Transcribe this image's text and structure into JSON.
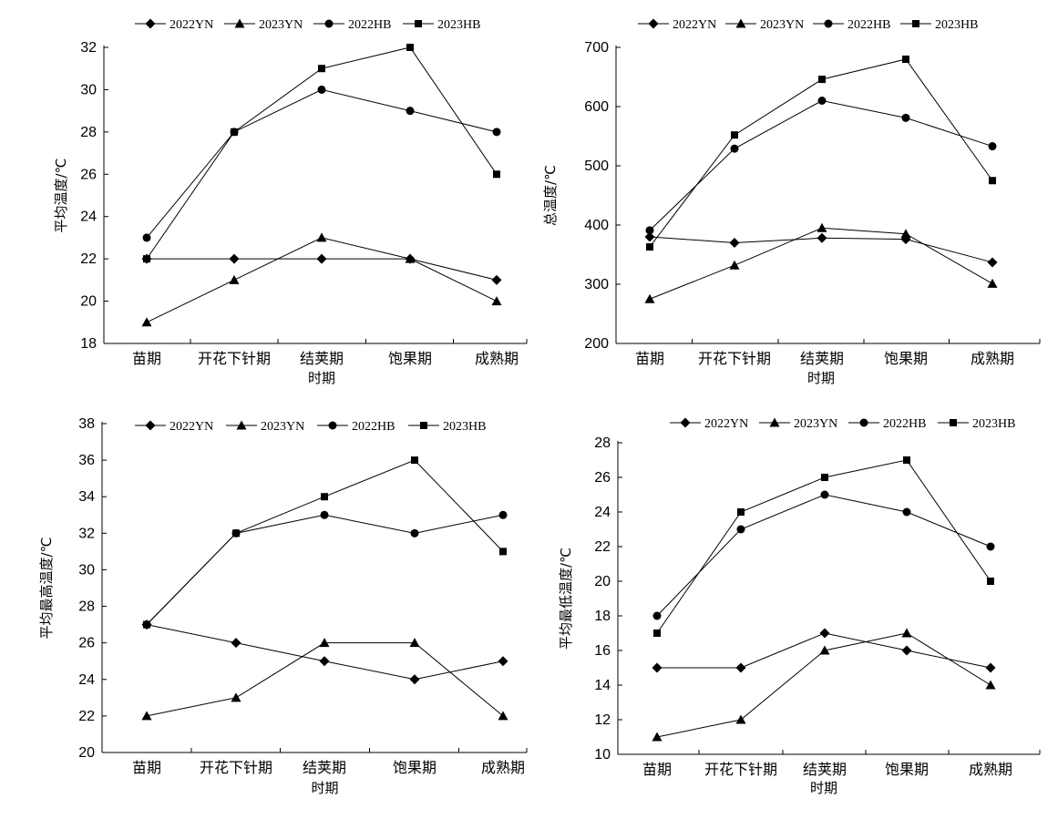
{
  "chart_data": [
    {
      "type": "line",
      "xlabel": "时期",
      "ylabel": "平均温度/℃",
      "categories": [
        "苗期",
        "开花下针期",
        "结荚期",
        "饱果期",
        "成熟期"
      ],
      "ylim": [
        18,
        32
      ],
      "yticks": [
        18,
        20,
        22,
        24,
        26,
        28,
        30,
        32
      ],
      "grid": false,
      "legend_position": "top",
      "series": [
        {
          "name": "2022YN",
          "marker": "diamond",
          "values": [
            22,
            22,
            22,
            22,
            21
          ]
        },
        {
          "name": "2023YN",
          "marker": "triangle",
          "values": [
            19,
            21,
            23,
            22,
            20
          ]
        },
        {
          "name": "2022HB",
          "marker": "circle",
          "values": [
            23,
            28,
            30,
            29,
            28
          ]
        },
        {
          "name": "2023HB",
          "marker": "square",
          "values": [
            22,
            28,
            31,
            32,
            26
          ]
        }
      ]
    },
    {
      "type": "line",
      "xlabel": "时期",
      "ylabel": "总温度/℃",
      "categories": [
        "苗期",
        "开花下针期",
        "结荚期",
        "饱果期",
        "成熟期"
      ],
      "ylim": [
        200,
        700
      ],
      "yticks": [
        200,
        300,
        400,
        500,
        600,
        700
      ],
      "grid": false,
      "legend_position": "top",
      "series": [
        {
          "name": "2022YN",
          "marker": "diamond",
          "values": [
            380,
            370,
            378,
            376,
            337
          ]
        },
        {
          "name": "2023YN",
          "marker": "triangle",
          "values": [
            275,
            332,
            395,
            385,
            301
          ]
        },
        {
          "name": "2022HB",
          "marker": "circle",
          "values": [
            391,
            529,
            610,
            581,
            533
          ]
        },
        {
          "name": "2023HB",
          "marker": "square",
          "values": [
            363,
            552,
            646,
            680,
            475
          ]
        }
      ]
    },
    {
      "type": "line",
      "xlabel": "时期",
      "ylabel": "平均最高温度/℃",
      "categories": [
        "苗期",
        "开花下针期",
        "结荚期",
        "饱果期",
        "成熟期"
      ],
      "ylim": [
        20,
        38
      ],
      "yticks": [
        20,
        22,
        24,
        26,
        28,
        30,
        32,
        34,
        36,
        38
      ],
      "grid": false,
      "legend_position": "top",
      "series": [
        {
          "name": "2022YN",
          "marker": "diamond",
          "values": [
            27,
            26,
            25,
            24,
            25
          ]
        },
        {
          "name": "2023YN",
          "marker": "triangle",
          "values": [
            22,
            23,
            26,
            26,
            22
          ]
        },
        {
          "name": "2022HB",
          "marker": "circle",
          "values": [
            27,
            32,
            33,
            32,
            33
          ]
        },
        {
          "name": "2023HB",
          "marker": "square",
          "values": [
            27,
            32,
            34,
            36,
            31
          ]
        }
      ]
    },
    {
      "type": "line",
      "xlabel": "时期",
      "ylabel": "平均最低温度/℃",
      "categories": [
        "苗期",
        "开花下针期",
        "结荚期",
        "饱果期",
        "成熟期"
      ],
      "ylim": [
        10,
        28
      ],
      "yticks": [
        10,
        12,
        14,
        16,
        18,
        20,
        22,
        24,
        26,
        28
      ],
      "grid": false,
      "legend_position": "top",
      "series": [
        {
          "name": "2022YN",
          "marker": "diamond",
          "values": [
            15,
            15,
            17,
            16,
            15
          ]
        },
        {
          "name": "2023YN",
          "marker": "triangle",
          "values": [
            11,
            12,
            16,
            17,
            14
          ]
        },
        {
          "name": "2022HB",
          "marker": "circle",
          "values": [
            18,
            23,
            25,
            24,
            22
          ]
        },
        {
          "name": "2023HB",
          "marker": "square",
          "values": [
            17,
            24,
            26,
            27,
            20
          ]
        }
      ]
    }
  ]
}
